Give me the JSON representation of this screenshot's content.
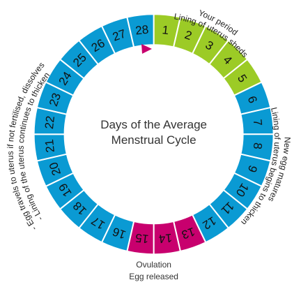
{
  "center_title": {
    "line1": "Days of the Average",
    "line2": "Menstrual Cycle"
  },
  "colors": {
    "period": "#9ccb26",
    "normal": "#0a9ad3",
    "ovulation": "#c8006e",
    "border": "#ffffff",
    "marker": "#c8006e"
  },
  "days": [
    {
      "n": "1",
      "phase": "period"
    },
    {
      "n": "2",
      "phase": "period"
    },
    {
      "n": "3",
      "phase": "period"
    },
    {
      "n": "4",
      "phase": "period"
    },
    {
      "n": "5",
      "phase": "period"
    },
    {
      "n": "6",
      "phase": "normal"
    },
    {
      "n": "7",
      "phase": "normal"
    },
    {
      "n": "8",
      "phase": "normal"
    },
    {
      "n": "9",
      "phase": "normal"
    },
    {
      "n": "10",
      "phase": "normal"
    },
    {
      "n": "11",
      "phase": "normal"
    },
    {
      "n": "12",
      "phase": "normal"
    },
    {
      "n": "13",
      "phase": "ovulation"
    },
    {
      "n": "14",
      "phase": "ovulation"
    },
    {
      "n": "15",
      "phase": "ovulation"
    },
    {
      "n": "16",
      "phase": "normal"
    },
    {
      "n": "17",
      "phase": "normal"
    },
    {
      "n": "18",
      "phase": "normal"
    },
    {
      "n": "19",
      "phase": "normal"
    },
    {
      "n": "20",
      "phase": "normal"
    },
    {
      "n": "21",
      "phase": "normal"
    },
    {
      "n": "22",
      "phase": "normal"
    },
    {
      "n": "23",
      "phase": "normal"
    },
    {
      "n": "24",
      "phase": "normal"
    },
    {
      "n": "25",
      "phase": "normal"
    },
    {
      "n": "26",
      "phase": "normal"
    },
    {
      "n": "27",
      "phase": "normal"
    },
    {
      "n": "28",
      "phase": "normal"
    }
  ],
  "labels": {
    "period_line1": "Your period",
    "period_line2": "Lining of uterus sheds",
    "follicular_line1": "New egg matures",
    "follicular_line2": "Lining of uterus begins to thicken",
    "ovulation_line1": "Ovulation",
    "ovulation_line2": "Egg released",
    "luteal_line1": "- Egg travels to uterus if not fertilised, dissolves",
    "luteal_line2": "- Lining of the uterus continues to thicken"
  }
}
